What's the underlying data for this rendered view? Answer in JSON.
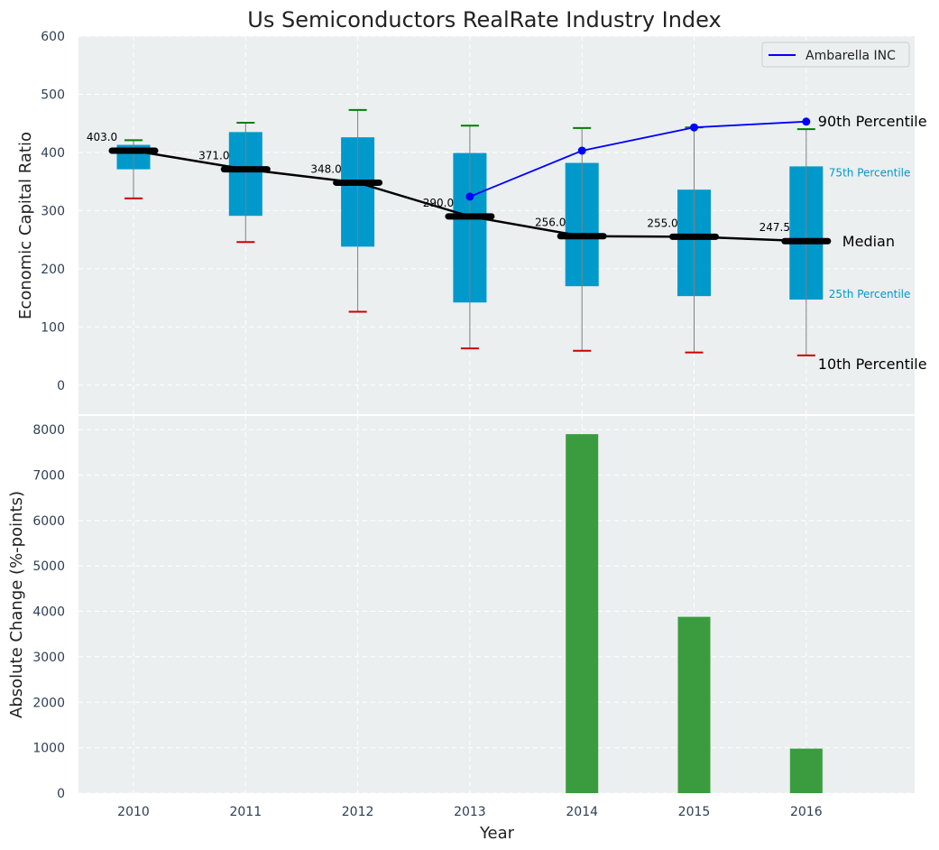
{
  "chart_data": [
    {
      "type": "box",
      "title": "Us Semiconductors RealRate Industry Index",
      "xlabel": "",
      "ylabel": "Economic Capital Ratio",
      "ylim": [
        -50,
        600
      ],
      "yticks": [
        0,
        100,
        200,
        300,
        400,
        500,
        600
      ],
      "categories": [
        "2010",
        "2011",
        "2012",
        "2013",
        "2014",
        "2015",
        "2016"
      ],
      "boxes": [
        {
          "year": "2010",
          "p10": 321,
          "p25": 371,
          "median": 403,
          "p75": 413,
          "p90": 421
        },
        {
          "year": "2011",
          "p10": 246,
          "p25": 291,
          "median": 371,
          "p75": 435,
          "p90": 451
        },
        {
          "year": "2012",
          "p10": 126,
          "p25": 238,
          "median": 348,
          "p75": 426,
          "p90": 473
        },
        {
          "year": "2013",
          "p10": 63,
          "p25": 142,
          "median": 290,
          "p75": 399,
          "p90": 446
        },
        {
          "year": "2014",
          "p10": 59,
          "p25": 170,
          "median": 256,
          "p75": 382,
          "p90": 442
        },
        {
          "year": "2015",
          "p10": 56,
          "p25": 153,
          "median": 255,
          "p75": 336,
          "p90": 443
        },
        {
          "year": "2016",
          "p10": 51,
          "p25": 147,
          "median": 247.5,
          "p75": 376,
          "p90": 440
        }
      ],
      "median_labels": [
        "403.0",
        "371.0",
        "348.0",
        "290.0",
        "256.0",
        "255.0",
        "247.5"
      ],
      "company_series": {
        "name": "Ambarella INC",
        "years": [
          "2013",
          "2014",
          "2015",
          "2016"
        ],
        "values": [
          324,
          403,
          443,
          453
        ]
      },
      "annotations": {
        "p90": "90th Percentile",
        "p75": "75th Percentile",
        "median": "Median",
        "p25": "25th Percentile",
        "p10": "10th Percentile"
      },
      "legend": {
        "position": "upper right",
        "entries": [
          "Ambarella INC"
        ]
      },
      "colors": {
        "background": "#ebeff0",
        "box": "#0099cc",
        "median_line": "#000000",
        "company": "#0000ff",
        "whisker_top": "#008000",
        "whisker_bottom": "#cc0000",
        "whisker_line": "#808080"
      },
      "grid": true
    },
    {
      "type": "bar",
      "xlabel": "Year",
      "ylabel": "Absolute Change (%-points)",
      "ylim": [
        0,
        8300
      ],
      "yticks": [
        0,
        1000,
        2000,
        3000,
        4000,
        5000,
        6000,
        7000,
        8000
      ],
      "categories": [
        "2010",
        "2011",
        "2012",
        "2013",
        "2014",
        "2015",
        "2016"
      ],
      "values": [
        0,
        0,
        0,
        0,
        7900,
        3880,
        980
      ],
      "colors": {
        "bar": "#3a9c3e",
        "background": "#ebeff0"
      },
      "grid": true
    }
  ]
}
